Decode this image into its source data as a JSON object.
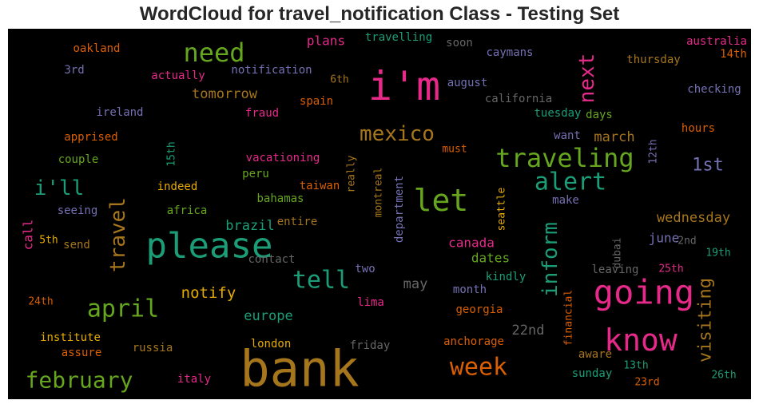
{
  "title": "WordCloud for travel_notification Class - Testing Set",
  "chart_data": {
    "type": "wordcloud",
    "background": "#000000",
    "palette": [
      "#1b9e77",
      "#d95f02",
      "#7570b3",
      "#e7298a",
      "#66a61e",
      "#e6ab02",
      "#a6761d",
      "#666666"
    ],
    "words": [
      {
        "text": "bank",
        "weight": 100,
        "color": "#a6761d"
      },
      {
        "text": "please",
        "weight": 70,
        "color": "#1b9e77"
      },
      {
        "text": "i'm",
        "weight": 70,
        "color": "#e7298a"
      },
      {
        "text": "let",
        "weight": 55,
        "color": "#66a61e"
      },
      {
        "text": "going",
        "weight": 55,
        "color": "#e7298a"
      },
      {
        "text": "know",
        "weight": 52,
        "color": "#e7298a"
      },
      {
        "text": "need",
        "weight": 45,
        "color": "#66a61e"
      },
      {
        "text": "traveling",
        "weight": 45,
        "color": "#66a61e"
      },
      {
        "text": "april",
        "weight": 43,
        "color": "#66a61e"
      },
      {
        "text": "tell",
        "weight": 42,
        "color": "#1b9e77"
      },
      {
        "text": "travel",
        "weight": 38,
        "color": "#a6761d"
      },
      {
        "text": "alert",
        "weight": 38,
        "color": "#1b9e77"
      },
      {
        "text": "week",
        "weight": 36,
        "color": "#d95f02"
      },
      {
        "text": "february",
        "weight": 36,
        "color": "#66a61e"
      },
      {
        "text": "inform",
        "weight": 35,
        "color": "#1b9e77"
      },
      {
        "text": "i'll",
        "weight": 35,
        "color": "#1b9e77"
      },
      {
        "text": "mexico",
        "weight": 33,
        "color": "#a6761d"
      },
      {
        "text": "next",
        "weight": 33,
        "color": "#e7298a"
      },
      {
        "text": "visiting",
        "weight": 30,
        "color": "#a6761d"
      },
      {
        "text": "1st",
        "weight": 30,
        "color": "#7570b3"
      },
      {
        "text": "tomorrow",
        "weight": 20,
        "color": "#a6761d"
      },
      {
        "text": "notify",
        "weight": 21,
        "color": "#e6ab02"
      },
      {
        "text": "march",
        "weight": 20,
        "color": "#a6761d"
      },
      {
        "text": "wednesday",
        "weight": 20,
        "color": "#a6761d"
      },
      {
        "text": "22nd",
        "weight": 20,
        "color": "#666666"
      },
      {
        "text": "may",
        "weight": 20,
        "color": "#666666"
      },
      {
        "text": "europe",
        "weight": 19,
        "color": "#1b9e77"
      },
      {
        "text": "brazil",
        "weight": 19,
        "color": "#1b9e77"
      },
      {
        "text": "canada",
        "weight": 18,
        "color": "#e7298a"
      },
      {
        "text": "dates",
        "weight": 18,
        "color": "#66a61e"
      },
      {
        "text": "june",
        "weight": 18,
        "color": "#7570b3"
      },
      {
        "text": "call",
        "weight": 18,
        "color": "#e7298a"
      },
      {
        "text": "plans",
        "weight": 17,
        "color": "#e7298a"
      },
      {
        "text": "travelling",
        "weight": 15,
        "color": "#1b9e77"
      },
      {
        "text": "soon",
        "weight": 15,
        "color": "#666666"
      },
      {
        "text": "australia",
        "weight": 16,
        "color": "#e7298a"
      },
      {
        "text": "14th",
        "weight": 15,
        "color": "#d95f02"
      },
      {
        "text": "oakland",
        "weight": 15,
        "color": "#d95f02"
      },
      {
        "text": "caymans",
        "weight": 15,
        "color": "#7570b3"
      },
      {
        "text": "thursday",
        "weight": 16,
        "color": "#a6761d"
      },
      {
        "text": "3rd",
        "weight": 15,
        "color": "#7570b3"
      },
      {
        "text": "actually",
        "weight": 15,
        "color": "#e7298a"
      },
      {
        "text": "notification",
        "weight": 15,
        "color": "#7570b3"
      },
      {
        "text": "6th",
        "weight": 14,
        "color": "#a6761d"
      },
      {
        "text": "august",
        "weight": 15,
        "color": "#7570b3"
      },
      {
        "text": "checking",
        "weight": 15,
        "color": "#7570b3"
      },
      {
        "text": "spain",
        "weight": 15,
        "color": "#d95f02"
      },
      {
        "text": "california",
        "weight": 15,
        "color": "#666666"
      },
      {
        "text": "ireland",
        "weight": 15,
        "color": "#7570b3"
      },
      {
        "text": "fraud",
        "weight": 15,
        "color": "#e7298a"
      },
      {
        "text": "tuesday",
        "weight": 15,
        "color": "#1b9e77"
      },
      {
        "text": "days",
        "weight": 15,
        "color": "#66a61e"
      },
      {
        "text": "want",
        "weight": 15,
        "color": "#7570b3"
      },
      {
        "text": "hours",
        "weight": 15,
        "color": "#d95f02"
      },
      {
        "text": "apprised",
        "weight": 15,
        "color": "#d95f02"
      },
      {
        "text": "must",
        "weight": 14,
        "color": "#d95f02"
      },
      {
        "text": "12th",
        "weight": 14,
        "color": "#7570b3"
      },
      {
        "text": "15th",
        "weight": 14,
        "color": "#1b9e77"
      },
      {
        "text": "couple",
        "weight": 15,
        "color": "#66a61e"
      },
      {
        "text": "vacationing",
        "weight": 15,
        "color": "#e7298a"
      },
      {
        "text": "peru",
        "weight": 15,
        "color": "#66a61e"
      },
      {
        "text": "really",
        "weight": 14,
        "color": "#a6761d"
      },
      {
        "text": "montreal",
        "weight": 14,
        "color": "#a6761d"
      },
      {
        "text": "department",
        "weight": 15,
        "color": "#7570b3"
      },
      {
        "text": "seattle",
        "weight": 14,
        "color": "#e6ab02"
      },
      {
        "text": "indeed",
        "weight": 15,
        "color": "#e6ab02"
      },
      {
        "text": "taiwan",
        "weight": 15,
        "color": "#d95f02"
      },
      {
        "text": "make",
        "weight": 14,
        "color": "#7570b3"
      },
      {
        "text": "seeing",
        "weight": 15,
        "color": "#7570b3"
      },
      {
        "text": "africa",
        "weight": 15,
        "color": "#66a61e"
      },
      {
        "text": "bahamas",
        "weight": 15,
        "color": "#66a61e"
      },
      {
        "text": "entire",
        "weight": 15,
        "color": "#a6761d"
      },
      {
        "text": "5th",
        "weight": 14,
        "color": "#e6ab02"
      },
      {
        "text": "send",
        "weight": 15,
        "color": "#a6761d"
      },
      {
        "text": "contact",
        "weight": 15,
        "color": "#666666"
      },
      {
        "text": "two",
        "weight": 15,
        "color": "#7570b3"
      },
      {
        "text": "dubai",
        "weight": 14,
        "color": "#666666"
      },
      {
        "text": "2nd",
        "weight": 14,
        "color": "#666666"
      },
      {
        "text": "19th",
        "weight": 14,
        "color": "#1b9e77"
      },
      {
        "text": "leaving",
        "weight": 15,
        "color": "#666666"
      },
      {
        "text": "25th",
        "weight": 14,
        "color": "#e7298a"
      },
      {
        "text": "kindly",
        "weight": 15,
        "color": "#1b9e77"
      },
      {
        "text": "month",
        "weight": 15,
        "color": "#7570b3"
      },
      {
        "text": "financial",
        "weight": 14,
        "color": "#d95f02"
      },
      {
        "text": "24th",
        "weight": 14,
        "color": "#d95f02"
      },
      {
        "text": "lima",
        "weight": 15,
        "color": "#e7298a"
      },
      {
        "text": "georgia",
        "weight": 15,
        "color": "#d95f02"
      },
      {
        "text": "institute",
        "weight": 15,
        "color": "#e6ab02"
      },
      {
        "text": "assure",
        "weight": 15,
        "color": "#d95f02"
      },
      {
        "text": "russia",
        "weight": 15,
        "color": "#a6761d"
      },
      {
        "text": "london",
        "weight": 15,
        "color": "#e6ab02"
      },
      {
        "text": "friday",
        "weight": 15,
        "color": "#666666"
      },
      {
        "text": "anchorage",
        "weight": 15,
        "color": "#d95f02"
      },
      {
        "text": "aware",
        "weight": 15,
        "color": "#a6761d"
      },
      {
        "text": "italy",
        "weight": 15,
        "color": "#e7298a"
      },
      {
        "text": "sunday",
        "weight": 15,
        "color": "#1b9e77"
      },
      {
        "text": "13th",
        "weight": 14,
        "color": "#1b9e77"
      },
      {
        "text": "23rd",
        "weight": 14,
        "color": "#d95f02"
      },
      {
        "text": "26th",
        "weight": 14,
        "color": "#1b9e77"
      }
    ]
  }
}
